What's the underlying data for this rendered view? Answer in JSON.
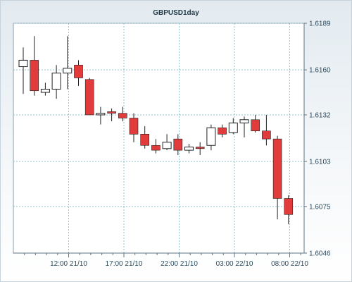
{
  "chart_data": {
    "type": "candlestick",
    "title": "GBPUSD1day",
    "y_axis": {
      "ticks": [
        "1.6189",
        "1.6160",
        "1.6132",
        "1.6103",
        "1.6075",
        "1.6046"
      ],
      "range": [
        1.6046,
        1.6189
      ],
      "position": "right"
    },
    "x_axis": {
      "tick_labels": [
        "12:00 21/10",
        "17:00 21/10",
        "22:00 21/10",
        "03:00 22/10",
        "08:00 22/10"
      ]
    },
    "grid": true,
    "colors": {
      "up": "#ffffff",
      "down": "#e23b3b",
      "outline": "#222222",
      "grid": "#8fc3cc"
    },
    "candles": [
      {
        "open": 1.6162,
        "high": 1.6174,
        "low": 1.6145,
        "close": 1.6166
      },
      {
        "open": 1.6166,
        "high": 1.6181,
        "low": 1.6144,
        "close": 1.6147
      },
      {
        "open": 1.6146,
        "high": 1.6152,
        "low": 1.6144,
        "close": 1.6148
      },
      {
        "open": 1.6148,
        "high": 1.6163,
        "low": 1.6142,
        "close": 1.6158
      },
      {
        "open": 1.6158,
        "high": 1.6181,
        "low": 1.6148,
        "close": 1.6161
      },
      {
        "open": 1.6163,
        "high": 1.6166,
        "low": 1.615,
        "close": 1.6155
      },
      {
        "open": 1.6154,
        "high": 1.6155,
        "low": 1.6132,
        "close": 1.6132
      },
      {
        "open": 1.6132,
        "high": 1.6137,
        "low": 1.6126,
        "close": 1.6133
      },
      {
        "open": 1.6134,
        "high": 1.6136,
        "low": 1.6128,
        "close": 1.6133
      },
      {
        "open": 1.6133,
        "high": 1.6137,
        "low": 1.6128,
        "close": 1.613
      },
      {
        "open": 1.613,
        "high": 1.6133,
        "low": 1.6115,
        "close": 1.612
      },
      {
        "open": 1.612,
        "high": 1.6125,
        "low": 1.6111,
        "close": 1.6113
      },
      {
        "open": 1.6113,
        "high": 1.6117,
        "low": 1.6108,
        "close": 1.611
      },
      {
        "open": 1.6111,
        "high": 1.612,
        "low": 1.611,
        "close": 1.6115
      },
      {
        "open": 1.6117,
        "high": 1.612,
        "low": 1.6107,
        "close": 1.611
      },
      {
        "open": 1.611,
        "high": 1.6114,
        "low": 1.6108,
        "close": 1.6112
      },
      {
        "open": 1.6112,
        "high": 1.6115,
        "low": 1.6107,
        "close": 1.6111
      },
      {
        "open": 1.6113,
        "high": 1.6126,
        "low": 1.611,
        "close": 1.6124
      },
      {
        "open": 1.6124,
        "high": 1.6126,
        "low": 1.6118,
        "close": 1.612
      },
      {
        "open": 1.6121,
        "high": 1.613,
        "low": 1.612,
        "close": 1.6127
      },
      {
        "open": 1.6127,
        "high": 1.6131,
        "low": 1.6118,
        "close": 1.6129
      },
      {
        "open": 1.6129,
        "high": 1.6132,
        "low": 1.6121,
        "close": 1.6122
      },
      {
        "open": 1.6122,
        "high": 1.6132,
        "low": 1.6113,
        "close": 1.6117
      },
      {
        "open": 1.6117,
        "high": 1.6119,
        "low": 1.6067,
        "close": 1.608
      },
      {
        "open": 1.608,
        "high": 1.6082,
        "low": 1.6064,
        "close": 1.607
      }
    ]
  }
}
